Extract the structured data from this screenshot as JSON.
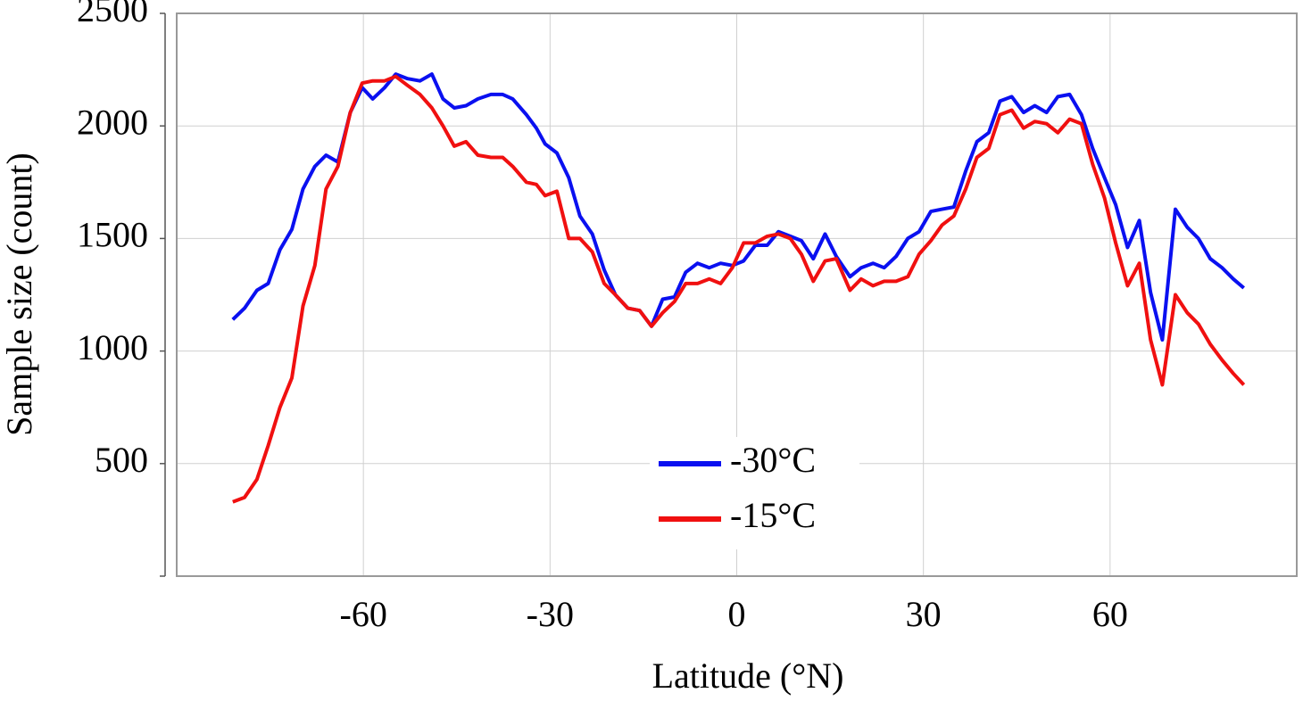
{
  "chart_data": {
    "type": "line",
    "x_label": "Latitude (°N)",
    "y_label": "Sample size (count)",
    "x": [
      -81,
      -79.1,
      -77.1,
      -75.3,
      -73.4,
      -71.5,
      -69.7,
      -67.8,
      -66,
      -64.1,
      -62.1,
      -60.2,
      -58.5,
      -56.6,
      -54.8,
      -52.9,
      -50.9,
      -49,
      -47.2,
      -45.4,
      -43.5,
      -41.6,
      -39.5,
      -37.6,
      -36,
      -33.8,
      -32.2,
      -30.8,
      -28.9,
      -27,
      -25.2,
      -23.2,
      -21.3,
      -19.5,
      -17.5,
      -15.6,
      -13.7,
      -11.9,
      -10,
      -8.2,
      -6.3,
      -4.4,
      -2.6,
      -0.7,
      1.1,
      3,
      4.9,
      6.7,
      8.6,
      10.4,
      12.3,
      14.2,
      16,
      18.2,
      20,
      21.9,
      23.7,
      25.6,
      27.5,
      29.3,
      31.2,
      33,
      34.9,
      36.8,
      38.6,
      40.5,
      42.3,
      44.2,
      46.1,
      47.9,
      49.8,
      51.6,
      53.5,
      55.4,
      57.2,
      59.1,
      60.9,
      62.8,
      64.7,
      66.5,
      68.4,
      70.5,
      72.4,
      74.2,
      76.1,
      78,
      79.8,
      81.5
    ],
    "series": [
      {
        "name": "-30°C",
        "color": "#0a10f0",
        "values": [
          1140,
          1190,
          1270,
          1300,
          1450,
          1540,
          1720,
          1820,
          1870,
          1840,
          2060,
          2170,
          2120,
          2170,
          2230,
          2210,
          2200,
          2230,
          2120,
          2080,
          2090,
          2120,
          2140,
          2140,
          2120,
          2050,
          1990,
          1920,
          1880,
          1770,
          1600,
          1520,
          1360,
          1250,
          1190,
          1180,
          1110,
          1230,
          1240,
          1350,
          1390,
          1370,
          1390,
          1380,
          1400,
          1470,
          1470,
          1530,
          1510,
          1490,
          1410,
          1520,
          1420,
          1330,
          1370,
          1390,
          1370,
          1420,
          1500,
          1530,
          1620,
          1630,
          1640,
          1800,
          1930,
          1970,
          2110,
          2130,
          2060,
          2090,
          2060,
          2130,
          2140,
          2050,
          1900,
          1770,
          1650,
          1460,
          1580,
          1260,
          1050,
          1630,
          1550,
          1500,
          1410,
          1370,
          1320,
          1280
        ]
      },
      {
        "name": "-15°C",
        "color": "#f01010",
        "values": [
          330,
          350,
          430,
          580,
          750,
          880,
          1200,
          1380,
          1720,
          1820,
          2060,
          2190,
          2200,
          2200,
          2220,
          2180,
          2140,
          2080,
          2000,
          1910,
          1930,
          1870,
          1860,
          1860,
          1820,
          1750,
          1740,
          1690,
          1710,
          1500,
          1500,
          1440,
          1300,
          1250,
          1190,
          1180,
          1110,
          1170,
          1220,
          1300,
          1300,
          1320,
          1300,
          1370,
          1480,
          1480,
          1510,
          1520,
          1500,
          1430,
          1310,
          1400,
          1410,
          1270,
          1320,
          1290,
          1310,
          1310,
          1330,
          1430,
          1490,
          1560,
          1600,
          1720,
          1860,
          1900,
          2050,
          2070,
          1990,
          2020,
          2010,
          1970,
          2030,
          2010,
          1830,
          1680,
          1480,
          1290,
          1390,
          1050,
          850,
          1250,
          1170,
          1120,
          1030,
          960,
          900,
          850
        ]
      }
    ],
    "xlim": [
      -90,
      90
    ],
    "xticks": [
      -60,
      -30,
      0,
      30,
      60
    ],
    "ylim": [
      0,
      2500
    ],
    "yticks": [
      500,
      1000,
      1500,
      2000,
      2500
    ],
    "grid": true,
    "legend": "lower center"
  }
}
